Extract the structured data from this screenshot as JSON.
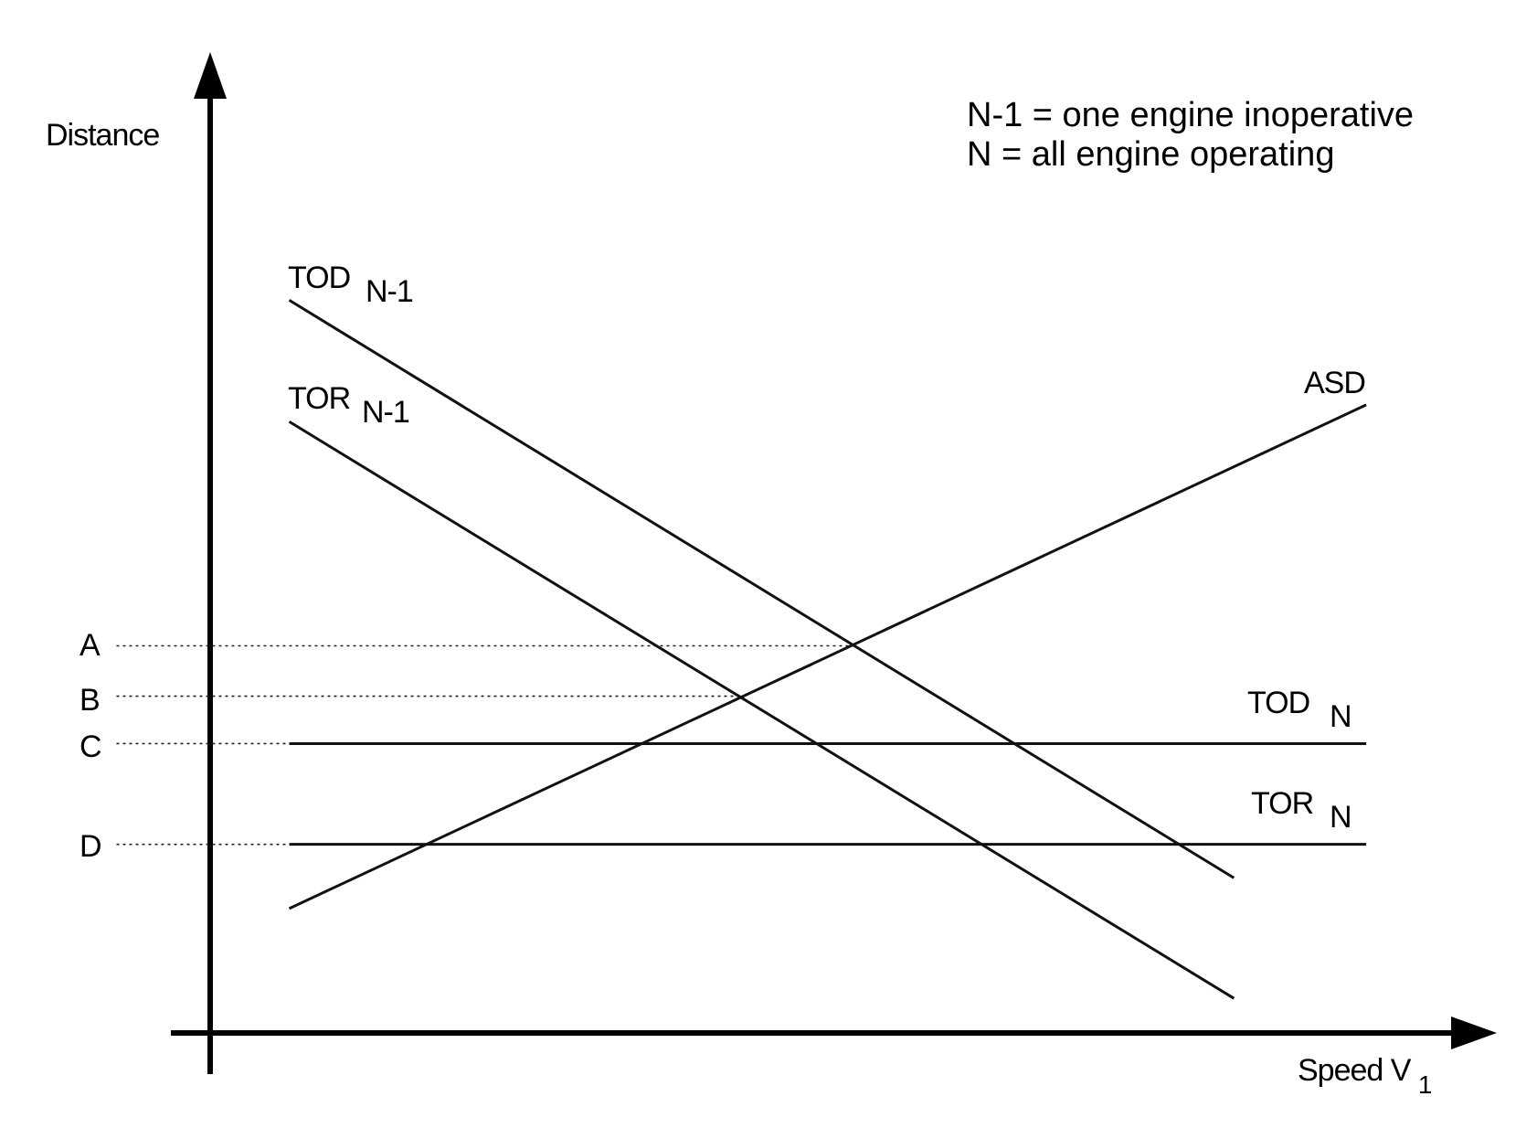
{
  "chart_data": {
    "type": "line",
    "ylabel": "Distance",
    "xlabel": "Speed V",
    "xlabel_subscript": "1",
    "legend": [
      "N-1 = one engine inoperative",
      "N = all engine operating"
    ],
    "series": [
      {
        "key": "tod_n1",
        "name": "TOD",
        "subscript": "N-1",
        "points": [
          [
            293,
            304
          ],
          [
            1250,
            889
          ]
        ]
      },
      {
        "key": "tor_n1",
        "name": "TOR",
        "subscript": "N-1",
        "points": [
          [
            293,
            427
          ],
          [
            1250,
            1011
          ]
        ]
      },
      {
        "key": "asd",
        "name": "ASD",
        "subscript": "",
        "points": [
          [
            293,
            920
          ],
          [
            1384,
            410
          ]
        ]
      },
      {
        "key": "tod_n",
        "name": "TOD",
        "subscript": "N",
        "points": [
          [
            293,
            753
          ],
          [
            1384,
            753
          ]
        ]
      },
      {
        "key": "tor_n",
        "name": "TOR",
        "subscript": "N",
        "points": [
          [
            293,
            855
          ],
          [
            1384,
            855
          ]
        ]
      }
    ],
    "levels": [
      {
        "label": "A",
        "y": 654,
        "x_end": 866
      },
      {
        "label": "B",
        "y": 705,
        "x_end": 750
      },
      {
        "label": "C",
        "y": 753,
        "x_end": 293
      },
      {
        "label": "D",
        "y": 855,
        "x_end": 293
      }
    ]
  }
}
